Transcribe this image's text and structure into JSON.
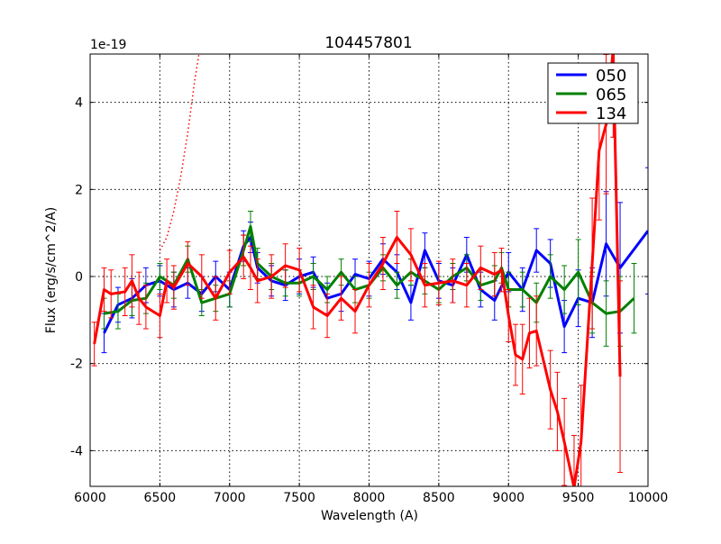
{
  "chart_data": {
    "type": "line",
    "title": "104457801",
    "xlabel": "Wavelength (A)",
    "ylabel": "Flux (erg/s/cm^2/A)",
    "y_offset_label": "1e-19",
    "xlim": [
      6000,
      10000
    ],
    "ylim": [
      -4.82,
      5.11
    ],
    "xticks": [
      6000,
      6500,
      7000,
      7500,
      8000,
      8500,
      9000,
      9500,
      10000
    ],
    "yticks": [
      -4,
      -2,
      0,
      2,
      4
    ],
    "grid": true,
    "legend_position": "top-right",
    "series": [
      {
        "name": "050",
        "color": "#0000ff",
        "x": [
          6100,
          6200,
          6300,
          6400,
          6500,
          6600,
          6700,
          6800,
          6900,
          7000,
          7100,
          7150,
          7200,
          7300,
          7400,
          7500,
          7600,
          7700,
          7800,
          7900,
          8000,
          8100,
          8200,
          8300,
          8400,
          8500,
          8600,
          8700,
          8800,
          8900,
          9000,
          9100,
          9200,
          9300,
          9400,
          9500,
          9600,
          9700,
          9800,
          10000
        ],
        "y": [
          -1.3,
          -0.65,
          -0.5,
          -0.2,
          -0.1,
          -0.3,
          -0.15,
          -0.4,
          0.0,
          -0.3,
          0.7,
          0.9,
          0.2,
          -0.1,
          -0.2,
          0.0,
          0.1,
          -0.5,
          -0.4,
          0.05,
          -0.05,
          0.4,
          0.1,
          -0.6,
          0.6,
          -0.1,
          -0.2,
          0.5,
          -0.3,
          -0.55,
          0.1,
          -0.3,
          0.6,
          0.3,
          -1.15,
          -0.5,
          -0.6,
          0.75,
          0.2,
          1.05
        ],
        "err": [
          0.45,
          0.4,
          0.45,
          0.4,
          0.35,
          0.4,
          0.35,
          0.4,
          0.35,
          0.4,
          0.35,
          0.35,
          0.35,
          0.35,
          0.35,
          0.4,
          0.35,
          0.35,
          0.4,
          0.35,
          0.4,
          0.35,
          0.4,
          0.4,
          0.4,
          0.4,
          0.4,
          0.4,
          0.4,
          0.45,
          0.45,
          0.5,
          0.5,
          0.55,
          0.6,
          0.65,
          0.8,
          1.2,
          1.5,
          1.45
        ]
      },
      {
        "name": "065",
        "color": "#008000",
        "x": [
          6100,
          6200,
          6300,
          6400,
          6500,
          6600,
          6700,
          6800,
          6900,
          7000,
          7100,
          7150,
          7200,
          7300,
          7400,
          7500,
          7600,
          7700,
          7800,
          7900,
          8000,
          8100,
          8200,
          8300,
          8400,
          8500,
          8600,
          8700,
          8800,
          8900,
          8950,
          9000,
          9100,
          9200,
          9300,
          9400,
          9500,
          9600,
          9700,
          9800,
          9900
        ],
        "y": [
          -0.85,
          -0.8,
          -0.55,
          -0.5,
          0.0,
          -0.2,
          0.4,
          -0.6,
          -0.5,
          -0.4,
          0.6,
          1.15,
          0.3,
          0.0,
          -0.15,
          -0.15,
          0.0,
          -0.3,
          0.1,
          -0.3,
          -0.2,
          0.2,
          -0.2,
          0.1,
          -0.1,
          -0.3,
          0.0,
          0.2,
          -0.2,
          -0.1,
          0.2,
          -0.3,
          -0.3,
          -0.6,
          0.0,
          -0.3,
          0.1,
          -0.6,
          -0.85,
          -0.8,
          -0.5
        ],
        "err": [
          0.35,
          0.4,
          0.35,
          0.35,
          0.3,
          0.3,
          0.3,
          0.3,
          0.3,
          0.3,
          0.35,
          0.35,
          0.35,
          0.3,
          0.3,
          0.3,
          0.3,
          0.3,
          0.3,
          0.3,
          0.3,
          0.3,
          0.3,
          0.3,
          0.3,
          0.3,
          0.3,
          0.3,
          0.35,
          0.35,
          0.35,
          0.4,
          0.4,
          0.45,
          0.5,
          0.55,
          0.75,
          0.7,
          0.75,
          0.8,
          0.8
        ]
      },
      {
        "name": "134",
        "color": "#ff0000",
        "x": [
          6030,
          6100,
          6150,
          6250,
          6300,
          6350,
          6400,
          6500,
          6550,
          6600,
          6700,
          6800,
          6900,
          7000,
          7100,
          7150,
          7200,
          7300,
          7400,
          7500,
          7600,
          7700,
          7800,
          7900,
          8000,
          8100,
          8200,
          8300,
          8400,
          8500,
          8600,
          8700,
          8800,
          8900,
          8950,
          9000,
          9050,
          9100,
          9150,
          9200,
          9300,
          9350,
          9400,
          9470,
          9520,
          9600,
          9650,
          9700,
          9750,
          9800
        ],
        "y": [
          -1.55,
          -0.3,
          -0.4,
          -0.35,
          -0.1,
          -0.5,
          -0.7,
          -0.9,
          -0.1,
          -0.25,
          0.3,
          0.0,
          -0.5,
          0.1,
          0.45,
          0.2,
          -0.1,
          0.0,
          0.25,
          0.15,
          -0.7,
          -0.9,
          -0.5,
          -0.8,
          -0.2,
          0.3,
          0.9,
          0.5,
          -0.2,
          -0.15,
          -0.1,
          -0.2,
          0.2,
          0.05,
          0.15,
          -0.9,
          -1.8,
          -1.9,
          -1.3,
          -1.25,
          -2.6,
          -3.1,
          -3.8,
          -4.85,
          -3.8,
          0.3,
          2.9,
          3.5,
          5.2,
          -2.3
        ],
        "err": [
          0.5,
          0.5,
          0.55,
          0.55,
          0.6,
          0.6,
          0.5,
          0.5,
          0.5,
          0.5,
          0.5,
          0.5,
          0.5,
          0.5,
          0.5,
          0.5,
          0.5,
          0.5,
          0.5,
          0.5,
          0.5,
          0.5,
          0.5,
          0.5,
          0.5,
          0.6,
          0.6,
          0.6,
          0.5,
          0.5,
          0.5,
          0.5,
          0.5,
          0.5,
          0.5,
          0.6,
          0.7,
          0.8,
          0.8,
          0.8,
          0.9,
          0.9,
          1.0,
          1.2,
          1.3,
          1.5,
          1.6,
          1.6,
          2.0,
          2.2
        ]
      }
    ],
    "model_curve": {
      "color": "#ff0000",
      "style": "dotted",
      "x": [
        6500,
        6550,
        6600,
        6650,
        6700,
        6750,
        6790
      ],
      "y": [
        0.6,
        0.9,
        1.5,
        2.3,
        3.3,
        4.5,
        5.3
      ]
    }
  }
}
